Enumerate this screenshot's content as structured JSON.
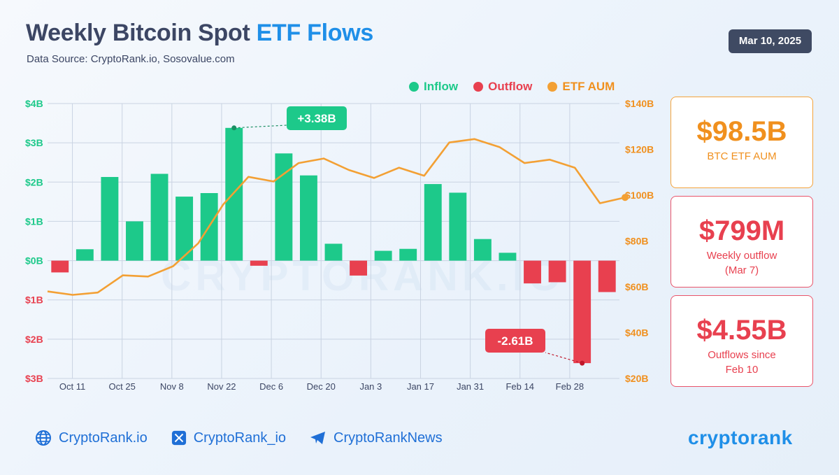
{
  "header": {
    "title_main": "Weekly Bitcoin Spot",
    "title_highlight": "ETF Flows",
    "source": "Data Source: CryptoRank.io, Sosovalue.com",
    "date": "Mar 10, 2025"
  },
  "legend": {
    "inflow": "Inflow",
    "outflow": "Outflow",
    "aum": "ETF AUM"
  },
  "colors": {
    "inflow": "#1dc98a",
    "outflow": "#e8404f",
    "aum": "#f3a034",
    "grid": "#c9d3e2",
    "axis_left_pos": "#1dc98a",
    "axis_left_neg": "#e8404f",
    "axis_right": "#f0901e"
  },
  "cards": {
    "aum_value": "$98.5B",
    "aum_label": "BTC ETF AUM",
    "outflow_value": "$799M",
    "outflow_label_1": "Weekly outflow",
    "outflow_label_2": "(Mar 7)",
    "since_value": "$4.55B",
    "since_label_1": "Outflows since",
    "since_label_2": "Feb 10"
  },
  "footer": {
    "site": "CryptoRank.io",
    "x_handle": "CryptoRank_io",
    "telegram": "CryptoRankNews",
    "logo": "cryptorank"
  },
  "watermark": "CRYPTORANK.IO",
  "chart_data": {
    "type": "bar",
    "x_tick_labels": [
      "Oct 11",
      "Oct 25",
      "Nov 8",
      "Nov 22",
      "Dec 6",
      "Dec 20",
      "Jan 3",
      "Jan 17",
      "Jan 31",
      "Feb 14",
      "Feb 28"
    ],
    "flows": [
      -0.3,
      0.29,
      2.13,
      1.0,
      2.21,
      1.63,
      1.72,
      3.38,
      -0.13,
      2.73,
      2.17,
      0.43,
      -0.38,
      0.25,
      0.3,
      1.95,
      1.73,
      0.55,
      0.2,
      -0.58,
      -0.55,
      -2.61,
      -0.8
    ],
    "aum": [
      null,
      58,
      56.5,
      57.5,
      65,
      64.5,
      69,
      79,
      96,
      108,
      106,
      114,
      116,
      111,
      107.5,
      112,
      108.5,
      123,
      124.5,
      121,
      114,
      115.5,
      112,
      96.5,
      99
    ],
    "left_axis": {
      "label_ticks": [
        "$4B",
        "$3B",
        "$2B",
        "$1B",
        "$0B",
        "$1B",
        "$2B",
        "$3B"
      ],
      "range": [
        -3,
        4
      ]
    },
    "right_axis": {
      "label_ticks": [
        "$140B",
        "$120B",
        "$100B",
        "$80B",
        "$60B",
        "$40B",
        "$20B"
      ],
      "range": [
        20,
        140
      ]
    },
    "series": [
      {
        "name": "Inflow"
      },
      {
        "name": "Outflow"
      },
      {
        "name": "ETF AUM"
      }
    ],
    "annotations": [
      {
        "text": "+3.38B",
        "index": 7,
        "value": 3.38
      },
      {
        "text": "-2.61B",
        "index": 21,
        "value": -2.61
      }
    ],
    "grid": true,
    "legend_position": "top-right"
  }
}
